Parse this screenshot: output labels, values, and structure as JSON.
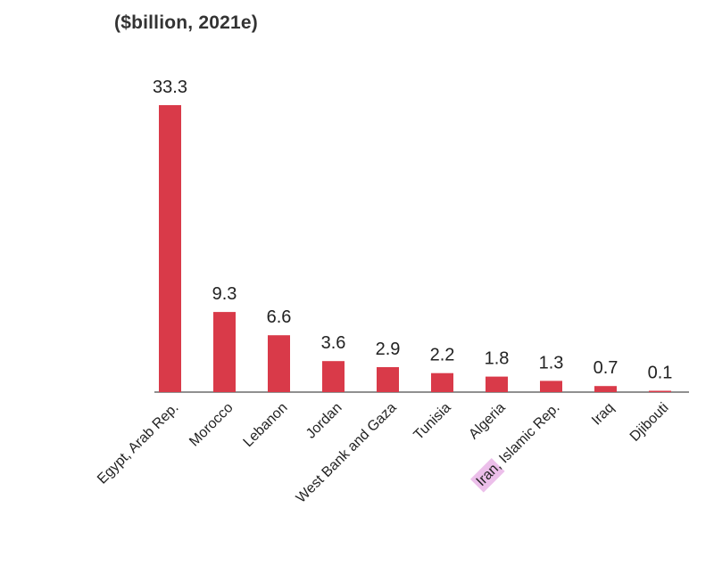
{
  "chart_data": {
    "type": "bar",
    "title": "",
    "unit_label": "($billion, 2021e)",
    "xlabel": "",
    "ylabel": "",
    "categories": [
      "Egypt, Arab Rep.",
      "Morocco",
      "Lebanon",
      "Jordan",
      "West Bank and Gaza",
      "Tunisia",
      "Algeria",
      "Iran, Islamic Rep.",
      "Iraq",
      "Djibouti"
    ],
    "values": [
      33.3,
      9.3,
      6.6,
      3.6,
      2.9,
      2.2,
      1.8,
      1.3,
      0.7,
      0.1
    ],
    "value_labels": [
      "33.3",
      "9.3",
      "6.6",
      "3.6",
      "2.9",
      "2.2",
      "1.8",
      "1.3",
      "0.7",
      "0.1"
    ],
    "ylim": [
      0,
      33.3
    ],
    "grid": false,
    "legend": "none",
    "highlighted_text": "Iran",
    "colors": {
      "bar": "#d93a49",
      "baseline": "#6b6b6b",
      "text": "#222222",
      "highlight": "#e9b4e6"
    }
  }
}
